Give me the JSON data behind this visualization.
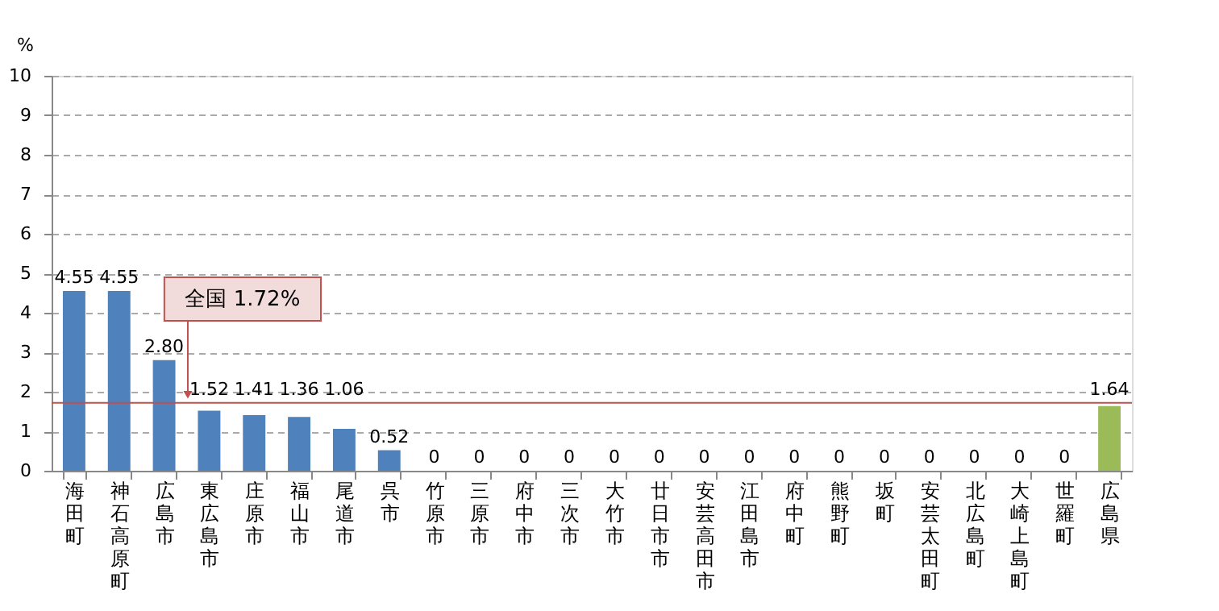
{
  "chart_data": {
    "type": "bar",
    "categories": [
      "海田町",
      "神石高原町",
      "広島市",
      "東広島市",
      "庄原市",
      "福山市",
      "尾道市",
      "呉市",
      "竹原市",
      "三原市",
      "府中市",
      "三次市",
      "大竹市",
      "廿日市市",
      "安芸高田市",
      "江田島市",
      "府中町",
      "熊野町",
      "坂町",
      "安芸太田町",
      "北広島町",
      "大崎上島町",
      "世羅町",
      "広島県"
    ],
    "values": [
      4.55,
      4.55,
      2.8,
      1.52,
      1.41,
      1.36,
      1.06,
      0.52,
      0,
      0,
      0,
      0,
      0,
      0,
      0,
      0,
      0,
      0,
      0,
      0,
      0,
      0,
      0,
      1.64
    ],
    "value_labels": [
      "4.55",
      "4.55",
      "2.80",
      "1.52",
      "1.41",
      "1.36",
      "1.06",
      "0.52",
      "0",
      "0",
      "0",
      "0",
      "0",
      "0",
      "0",
      "0",
      "0",
      "0",
      "0",
      "0",
      "0",
      "0",
      "0",
      "1.64"
    ],
    "colors": [
      "#4f81bd",
      "#4f81bd",
      "#4f81bd",
      "#4f81bd",
      "#4f81bd",
      "#4f81bd",
      "#4f81bd",
      "#4f81bd",
      "#4f81bd",
      "#4f81bd",
      "#4f81bd",
      "#4f81bd",
      "#4f81bd",
      "#4f81bd",
      "#4f81bd",
      "#4f81bd",
      "#4f81bd",
      "#4f81bd",
      "#4f81bd",
      "#4f81bd",
      "#4f81bd",
      "#4f81bd",
      "#4f81bd",
      "#9bbb59"
    ],
    "ylabel": "%",
    "ylim": [
      0,
      10
    ],
    "yticks": [
      0,
      1,
      2,
      3,
      4,
      5,
      6,
      7,
      8,
      9,
      10
    ],
    "grid": "y",
    "ref_lines": [
      {
        "axis": "y",
        "value": 1.72,
        "label": "全国  1.72%",
        "color": "#c0504d"
      }
    ]
  }
}
